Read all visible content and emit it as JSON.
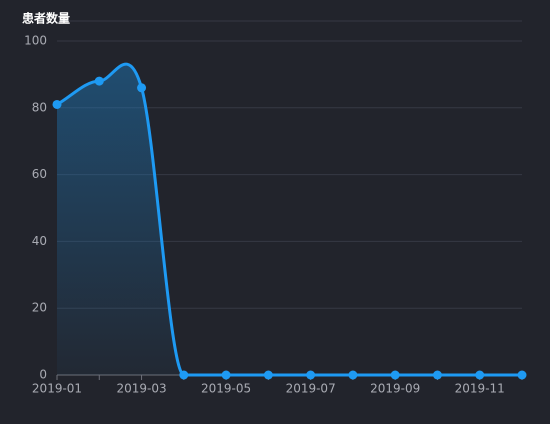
{
  "chart_data": {
    "type": "line",
    "y_axis_title": "患者数量",
    "categories": [
      "2019-01",
      null,
      "2019-03",
      null,
      "2019-05",
      null,
      "2019-07",
      null,
      "2019-09",
      null,
      "2019-11",
      null
    ],
    "series": [
      {
        "color": "#1e9af3",
        "values": [
          81,
          88,
          86,
          0,
          0,
          0,
          0,
          0,
          0,
          0,
          0,
          0
        ]
      }
    ],
    "ylim": [
      0,
      100
    ],
    "yticks": [
      0,
      20,
      40,
      60,
      80,
      100
    ],
    "grid": true,
    "area": true,
    "smooth": true
  }
}
